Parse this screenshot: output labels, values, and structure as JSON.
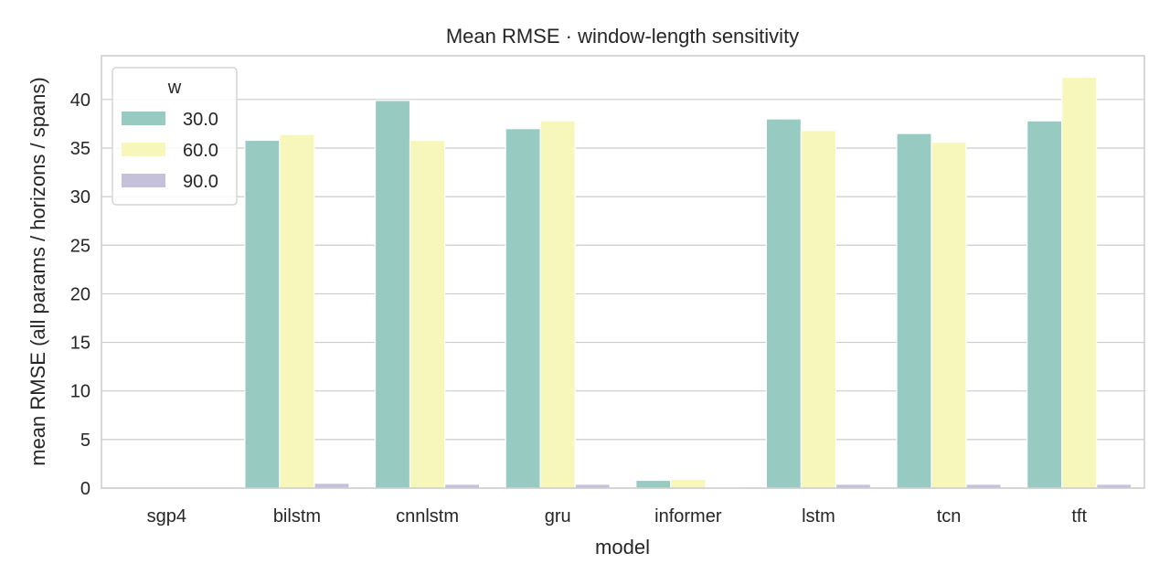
{
  "chart_data": {
    "type": "bar",
    "title": "Mean RMSE · window-length sensitivity",
    "xlabel": "model",
    "ylabel": "mean RMSE (all params / horizons / spans)",
    "categories": [
      "sgp4",
      "bilstm",
      "cnnlstm",
      "gru",
      "informer",
      "lstm",
      "tcn",
      "tft"
    ],
    "series": [
      {
        "name": "30.0",
        "color": "#97cbc2",
        "values": [
          0,
          35.8,
          39.9,
          37.0,
          0.8,
          38.0,
          36.5,
          37.8
        ]
      },
      {
        "name": "60.0",
        "color": "#f7f7bb",
        "values": [
          0,
          36.4,
          35.8,
          37.8,
          0.9,
          36.8,
          35.6,
          42.3
        ]
      },
      {
        "name": "90.0",
        "color": "#c5c1db",
        "values": [
          0,
          0.5,
          0.4,
          0.4,
          0.1,
          0.4,
          0.4,
          0.4
        ]
      }
    ],
    "ylim": [
      0,
      44.5
    ],
    "yticks": [
      "0",
      "5",
      "10",
      "15",
      "20",
      "25",
      "30",
      "35",
      "40"
    ],
    "legend": {
      "title": "w",
      "placement": "top-left"
    },
    "grid": "y"
  }
}
